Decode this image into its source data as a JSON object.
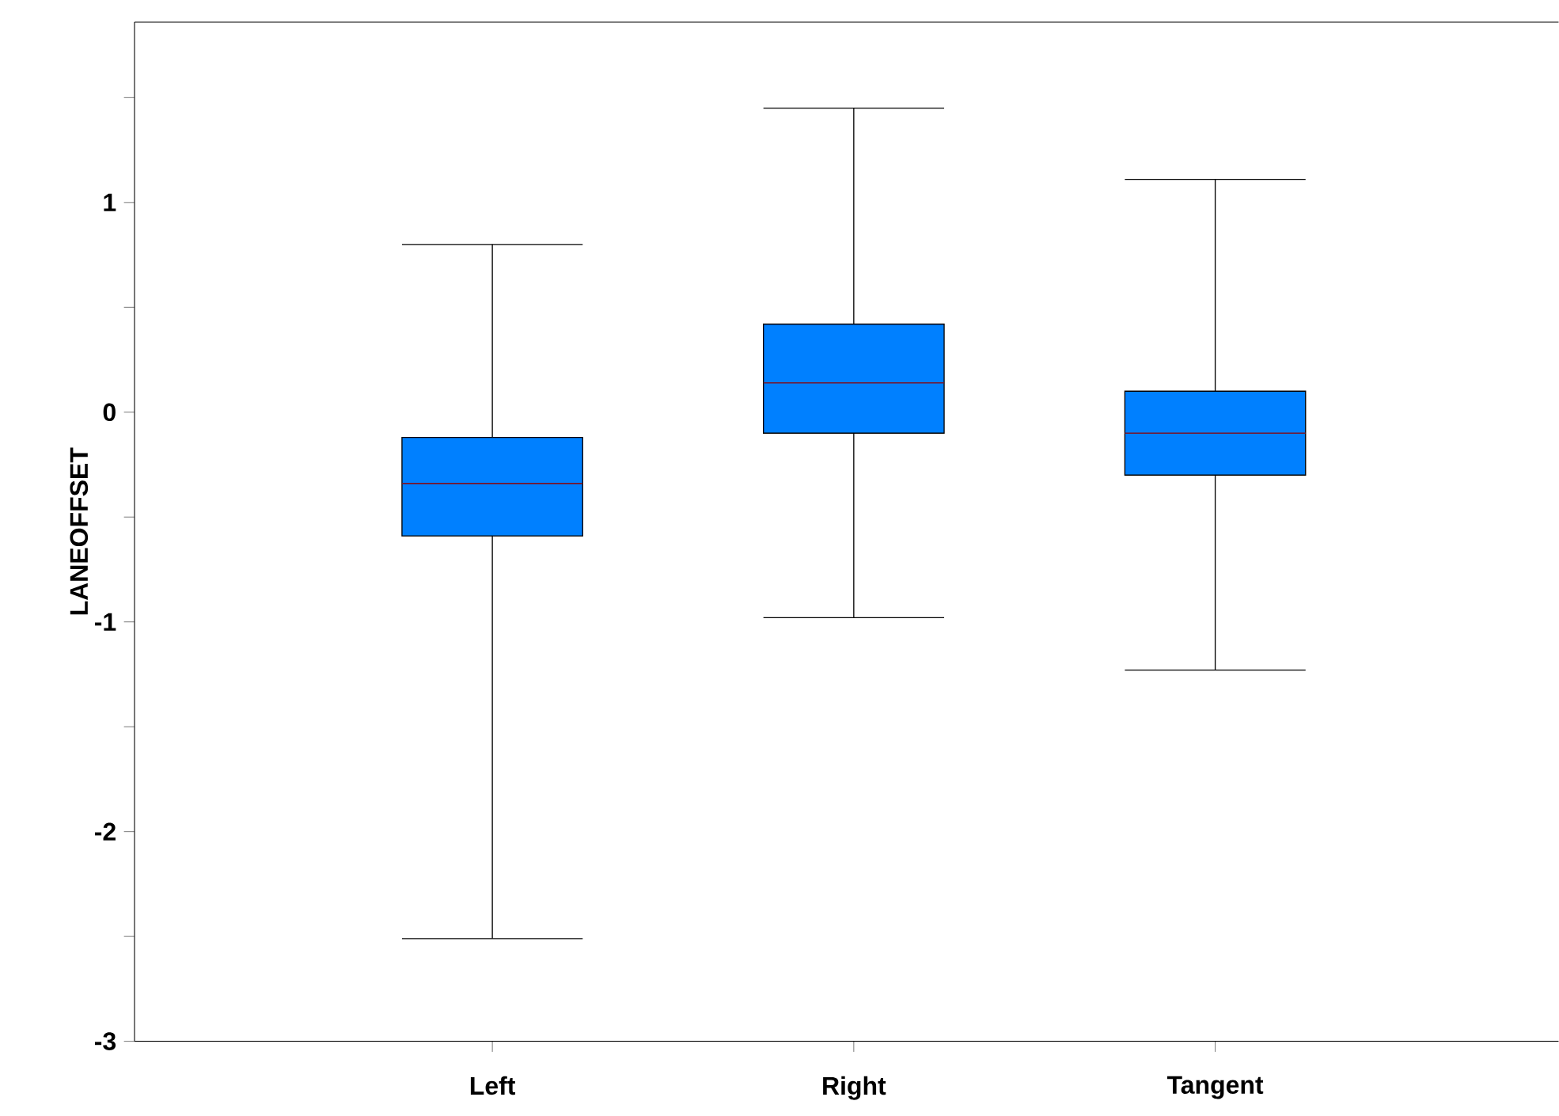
{
  "chart_data": {
    "type": "box",
    "ylabel": "LANEOFFSET",
    "categories": [
      "Left",
      "Right",
      "Tangent"
    ],
    "boxes": [
      {
        "low": -2.51,
        "q1": -0.59,
        "median": -0.34,
        "q3": -0.12,
        "high": 0.8
      },
      {
        "low": -0.98,
        "q1": -0.1,
        "median": 0.14,
        "q3": 0.42,
        "high": 1.45
      },
      {
        "low": -1.23,
        "q1": -0.3,
        "median": -0.1,
        "q3": 0.1,
        "high": 1.11
      }
    ],
    "color": "#0080ff",
    "ylim": [
      -3,
      1.86
    ],
    "yticks": [
      -3,
      {
        "value": -2.5,
        "label": null
      },
      -2,
      {
        "value": -1.5,
        "label": null
      },
      -1,
      {
        "value": -0.5,
        "label": null
      },
      0,
      {
        "value": 0.5,
        "label": null
      },
      1,
      {
        "value": 1.5,
        "label": null
      }
    ],
    "grid": false
  }
}
